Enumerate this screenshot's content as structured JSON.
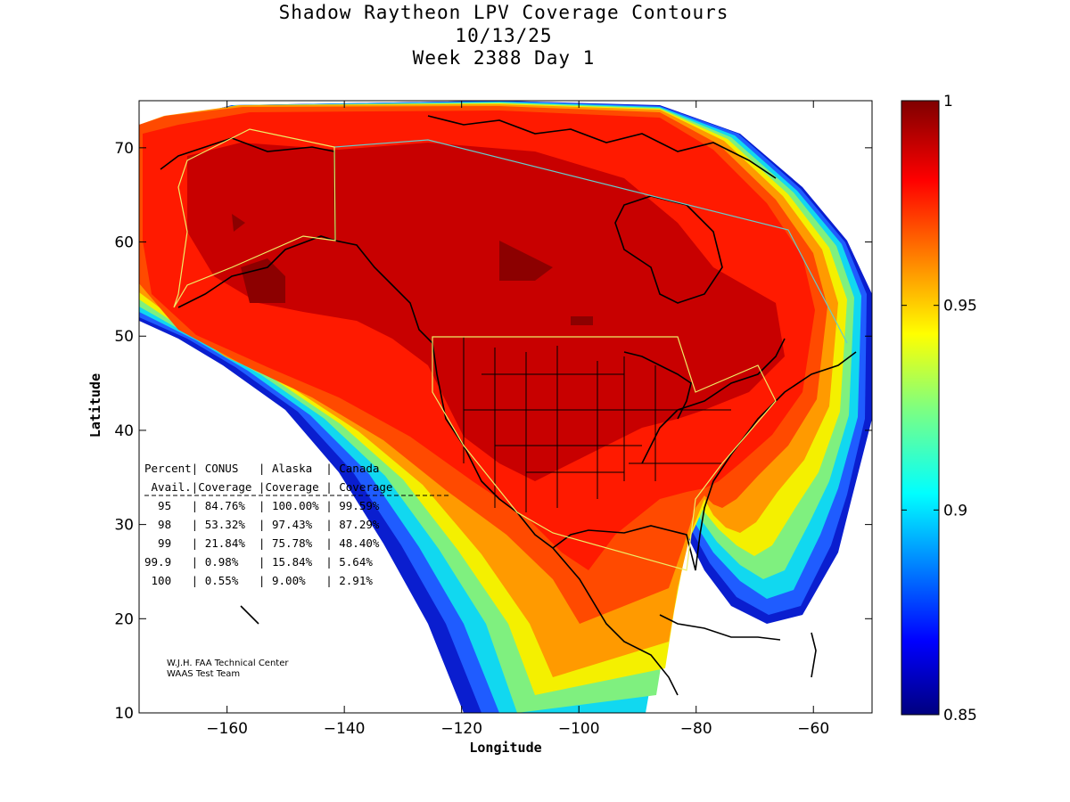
{
  "title": {
    "line1": "Shadow Raytheon LPV Coverage Contours",
    "line2": "10/13/25",
    "line3": "Week 2388 Day 1"
  },
  "axes": {
    "xlabel": "Longitude",
    "ylabel": "Latitude",
    "xlim": [
      -175,
      -50
    ],
    "ylim": [
      10,
      75
    ],
    "xticks": [
      -160,
      -140,
      -120,
      -100,
      -80,
      -60
    ],
    "yticks": [
      10,
      20,
      30,
      40,
      50,
      60,
      70
    ]
  },
  "colorbar": {
    "range": [
      0.85,
      1
    ],
    "ticks": [
      "1",
      "0.95",
      "0.9",
      "0.85"
    ],
    "tick_values": [
      1,
      0.95,
      0.9,
      0.85
    ]
  },
  "table": {
    "header1": "Percent| CONUS   | Alaska  | Canada",
    "header2": " Avail.|Coverage |Coverage | Coverage",
    "rows": [
      "  95   | 84.76%  | 100.00% | 99.59%",
      "  98   | 53.32%  | 97.43%  | 87.29%",
      "  99   | 21.84%  | 75.78%  | 48.40%",
      "99.9   | 0.98%   | 15.84%  | 5.64%",
      " 100   | 0.55%   | 9.00%   | 2.91%"
    ]
  },
  "credit": {
    "line1": "W.J.H. FAA Technical Center",
    "line2": "WAAS Test Team"
  },
  "chart_data": {
    "type": "heatmap",
    "title": "Shadow Raytheon LPV Coverage Contours",
    "subtitle": "10/13/25 Week 2388 Day 1",
    "xlabel": "Longitude",
    "ylabel": "Latitude",
    "xlim": [
      -175,
      -50
    ],
    "ylim": [
      10,
      75
    ],
    "colorbar_range": [
      0.85,
      1
    ],
    "coverage_table": {
      "columns": [
        "Percent Avail.",
        "CONUS Coverage",
        "Alaska Coverage",
        "Canada Coverage"
      ],
      "rows": [
        [
          "95",
          "84.76%",
          "100.00%",
          "99.59%"
        ],
        [
          "98",
          "53.32%",
          "97.43%",
          "87.29%"
        ],
        [
          "99",
          "21.84%",
          "75.78%",
          "48.40%"
        ],
        [
          "99.9",
          "0.98%",
          "15.84%",
          "5.64%"
        ],
        [
          "100",
          "0.55%",
          "9.00%",
          "2.91%"
        ]
      ]
    }
  }
}
